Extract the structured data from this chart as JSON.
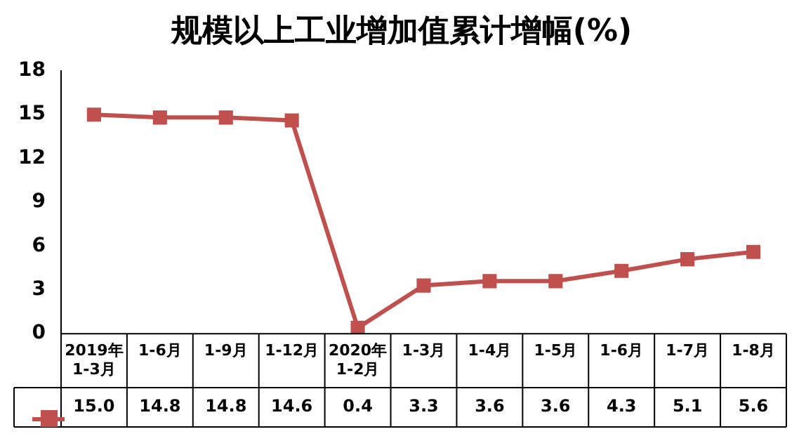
{
  "chart_data": {
    "type": "line",
    "title": "规模以上工业增加值累计增幅(%)",
    "categories": [
      "2019年\n1-3月",
      "1-6月",
      "1-9月",
      "1-12月",
      "2020年\n1-2月",
      "1-3月",
      "1-4月",
      "1-5月",
      "1-6月",
      "1-7月",
      "1-8月"
    ],
    "series": [
      {
        "color": "#c0504d",
        "values": [
          15.0,
          14.8,
          14.8,
          14.6,
          0.4,
          3.3,
          3.6,
          3.6,
          4.3,
          5.1,
          5.6
        ],
        "value_labels": [
          "15.0",
          "14.8",
          "14.8",
          "14.6",
          "0.4",
          "3.3",
          "3.6",
          "3.6",
          "4.3",
          "5.1",
          "5.6"
        ]
      }
    ],
    "ylim": [
      0,
      18
    ],
    "yticks": [
      0,
      3,
      6,
      9,
      12,
      15,
      18
    ],
    "grid": false,
    "marker": "square",
    "line_style": "solid"
  }
}
